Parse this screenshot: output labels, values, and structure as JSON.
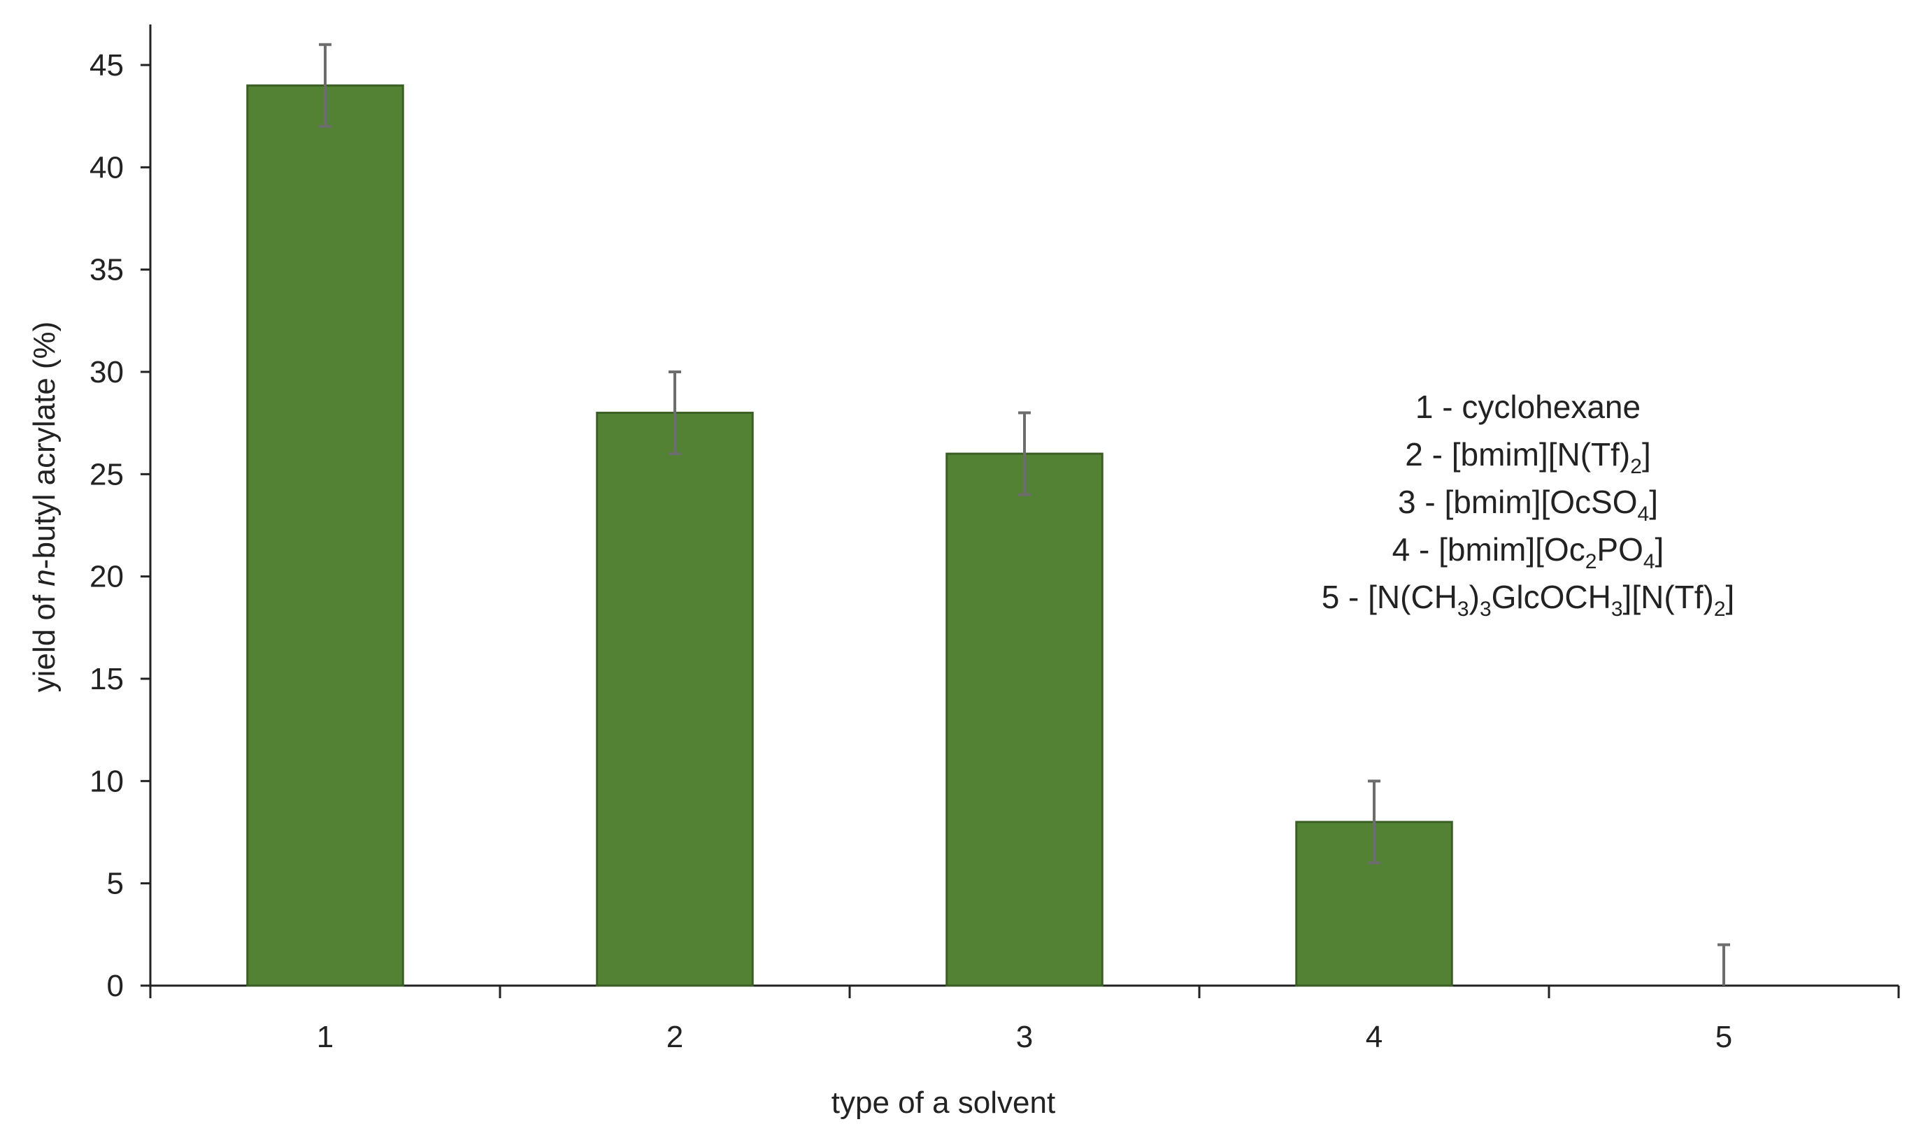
{
  "chart_data": {
    "type": "bar",
    "categories": [
      "1",
      "2",
      "3",
      "4",
      "5"
    ],
    "values": [
      44,
      28,
      26,
      8,
      0
    ],
    "error": [
      2,
      2,
      2,
      2,
      2
    ],
    "xlabel": "type of a solvent",
    "ylabel_parts": [
      "yield of ",
      "n",
      "-butyl acrylate (%)"
    ],
    "ylim": [
      0,
      45
    ],
    "yticks": [
      "0",
      "5",
      "10",
      "15",
      "20",
      "25",
      "30",
      "35",
      "40",
      "45"
    ],
    "grid": false,
    "colors": {
      "bar": "#548235",
      "bar_edge": "#3b5e25",
      "axis": "#222222",
      "error_bar": "#6d6d6d"
    },
    "annotation": [
      [
        {
          "t": "1 - cyclohexane"
        }
      ],
      [
        {
          "t": "2 - [bmim][N(Tf)"
        },
        {
          "t": "2",
          "sub": true
        },
        {
          "t": "]"
        }
      ],
      [
        {
          "t": "3 - [bmim][OcSO"
        },
        {
          "t": "4",
          "sub": true
        },
        {
          "t": "]"
        }
      ],
      [
        {
          "t": "4 - [bmim][Oc"
        },
        {
          "t": "2",
          "sub": true
        },
        {
          "t": "PO"
        },
        {
          "t": "4",
          "sub": true
        },
        {
          "t": "]"
        }
      ],
      [
        {
          "t": "5 -  [N(CH"
        },
        {
          "t": "3",
          "sub": true
        },
        {
          "t": ")"
        },
        {
          "t": "3",
          "sub": true
        },
        {
          "t": "GlcOCH"
        },
        {
          "t": "3",
          "sub": true
        },
        {
          "t": "][N(Tf)"
        },
        {
          "t": "2",
          "sub": true
        },
        {
          "t": "]"
        }
      ]
    ]
  }
}
